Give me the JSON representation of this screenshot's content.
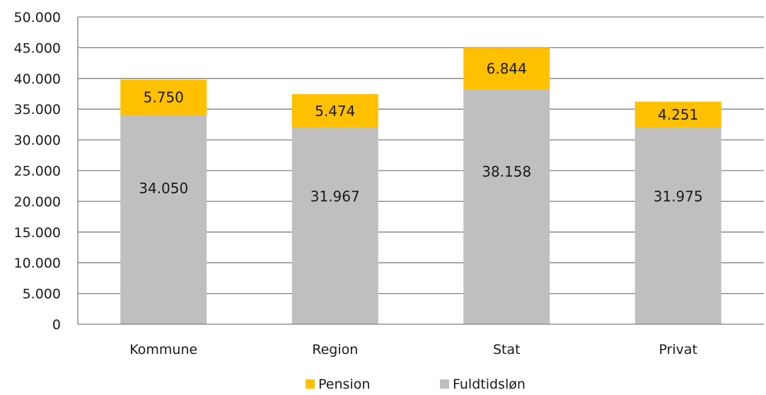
{
  "chart_data": {
    "type": "bar",
    "stacked": true,
    "categories": [
      "Kommune",
      "Region",
      "Stat",
      "Privat"
    ],
    "series": [
      {
        "name": "Fuldtidsløn",
        "values": [
          34050,
          31967,
          38158,
          31975
        ],
        "labels": [
          "34.050",
          "31.967",
          "38.158",
          "31.975"
        ],
        "color": "#BFBFBF"
      },
      {
        "name": "Pension",
        "values": [
          5750,
          5474,
          6844,
          4251
        ],
        "labels": [
          "5.750",
          "5.474",
          "6.844",
          "4.251"
        ],
        "color": "#FFC000"
      }
    ],
    "ylim": [
      0,
      50000
    ],
    "yticks": [
      0,
      5000,
      10000,
      15000,
      20000,
      25000,
      30000,
      35000,
      40000,
      45000,
      50000
    ],
    "ytick_labels": [
      "0",
      "5.000",
      "10.000",
      "15.000",
      "20.000",
      "25.000",
      "30.000",
      "35.000",
      "40.000",
      "45.000",
      "50.000"
    ],
    "legend": {
      "position": "bottom",
      "order": [
        "Pension",
        "Fuldtidsløn"
      ]
    },
    "grid": true,
    "gridline_color": "#7F7F7F",
    "axis_color": "#7F7F7F",
    "title": "",
    "xlabel": "",
    "ylabel": ""
  }
}
